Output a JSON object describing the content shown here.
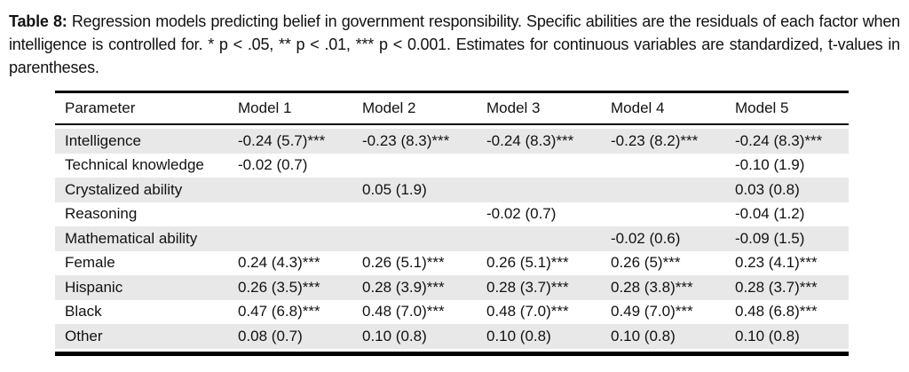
{
  "caption": {
    "label": "Table 8:",
    "text": "Regression models predicting belief in government responsibility. Specific abilities are the residuals of each factor when intelligence is controlled for. * p < .05, ** p < .01, *** p < 0.001. Estimates for continuous variables are standardized, t-values in parentheses."
  },
  "table": {
    "columns": [
      "Parameter",
      "Model 1",
      "Model 2",
      "Model 3",
      "Model 4",
      "Model 5"
    ],
    "rows": [
      {
        "label": "Intelligence",
        "values": [
          "-0.24 (5.7)***",
          "-0.23 (8.3)***",
          "-0.24 (8.3)***",
          "-0.23 (8.2)***",
          "-0.24 (8.3)***"
        ]
      },
      {
        "label": "Technical knowledge",
        "values": [
          "-0.02 (0.7)",
          "",
          "",
          "",
          "-0.10 (1.9)"
        ]
      },
      {
        "label": "Crystalized ability",
        "values": [
          "",
          "0.05 (1.9)",
          "",
          "",
          "0.03 (0.8)"
        ]
      },
      {
        "label": "Reasoning",
        "values": [
          "",
          "",
          "-0.02 (0.7)",
          "",
          "-0.04 (1.2)"
        ]
      },
      {
        "label": "Mathematical ability",
        "values": [
          "",
          "",
          "",
          "-0.02 (0.6)",
          "-0.09 (1.5)"
        ]
      },
      {
        "label": "Female",
        "values": [
          "0.24 (4.3)***",
          "0.26 (5.1)***",
          "0.26 (5.1)***",
          "0.26 (5)***",
          "0.23 (4.1)***"
        ]
      },
      {
        "label": "Hispanic",
        "values": [
          "0.26 (3.5)***",
          "0.28 (3.9)***",
          "0.28 (3.7)***",
          "0.28 (3.8)***",
          "0.28 (3.7)***"
        ]
      },
      {
        "label": "Black",
        "values": [
          "0.47 (6.8)***",
          "0.48 (7.0)***",
          "0.48 (7.0)***",
          "0.49 (7.0)***",
          "0.48 (6.8)***"
        ]
      },
      {
        "label": "Other",
        "values": [
          "0.08 (0.7)",
          "0.10 (0.8)",
          "0.10 (0.8)",
          "0.10 (0.8)",
          "0.10 (0.8)"
        ]
      }
    ]
  },
  "colors": {
    "row_shade": "#e8e8e8",
    "rule": "#000000",
    "text": "#121212",
    "background": "#ffffff"
  }
}
